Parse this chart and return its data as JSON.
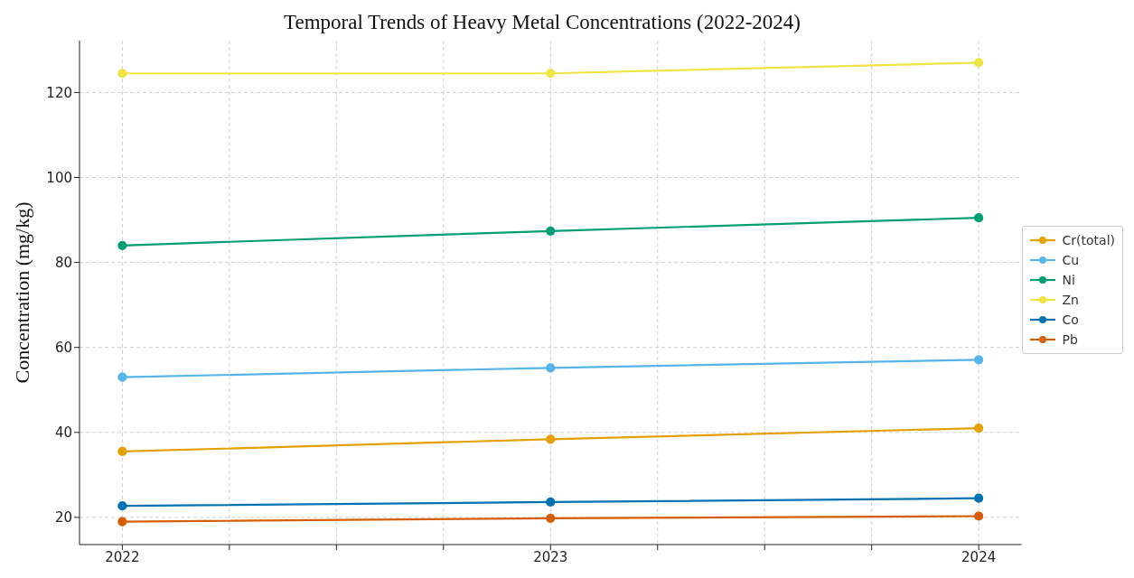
{
  "chart_data": {
    "type": "line",
    "title": "Temporal Trends of Heavy Metal Concentrations (2022-2024)",
    "ylabel": "Concentration (mg/kg)",
    "x": [
      2022,
      2023,
      2024
    ],
    "series": [
      {
        "name": "Cr(total)",
        "color": "#e69f00",
        "values": [
          35.5,
          38.4,
          41
        ]
      },
      {
        "name": "Cu",
        "color": "#56b4e9",
        "values": [
          53,
          55.2,
          57.1
        ]
      },
      {
        "name": "Ni",
        "color": "#009e73",
        "values": [
          84,
          87.4,
          90.5
        ]
      },
      {
        "name": "Zn",
        "color": "#f0e442",
        "values": [
          124.5,
          124.5,
          127
        ]
      },
      {
        "name": "Co",
        "color": "#0072b2",
        "values": [
          22.7,
          23.6,
          24.5
        ]
      },
      {
        "name": "Pb",
        "color": "#d55e00",
        "values": [
          19,
          19.8,
          20.3
        ]
      }
    ],
    "xlim": [
      2021.9,
      2024.1
    ],
    "xticks": [
      2022,
      {
        "value": 2022.25,
        "label": null
      },
      {
        "value": 2022.5,
        "label": null
      },
      {
        "value": 2022.75,
        "label": null
      },
      2023,
      {
        "value": 2023.25,
        "label": null
      },
      {
        "value": 2023.5,
        "label": null
      },
      {
        "value": 2023.75,
        "label": null
      },
      2024
    ],
    "ylim": [
      13.6,
      132.2
    ],
    "yticks": [
      20,
      40,
      60,
      80,
      100,
      120
    ],
    "grid": true,
    "legend": "right",
    "marker": "circle",
    "line_style": "solid"
  }
}
